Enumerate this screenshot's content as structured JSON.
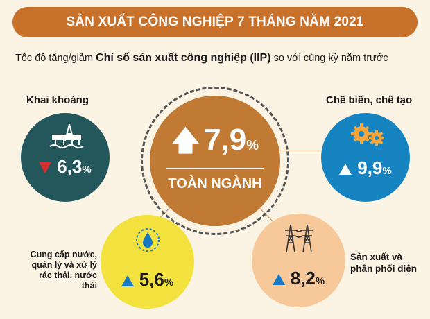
{
  "header": {
    "title": "SẢN XUẤT CÔNG NGHIỆP 7 THÁNG NĂM 2021"
  },
  "subtitle": {
    "part1": "Tốc độ tăng/giảm ",
    "part2": "Chỉ số sản xuất công nghiệp (IIP)",
    "part3": " so với cùng kỳ năm trước"
  },
  "total": {
    "value": "7,9",
    "unit": "%",
    "label": "TOÀN NGÀNH",
    "direction": "up"
  },
  "sectors": {
    "mining": {
      "label": "Khai khoáng",
      "value": "6,3",
      "unit": "%",
      "direction": "down",
      "color": "#23575c",
      "icon": "oil-rig-icon"
    },
    "manufacturing": {
      "label": "Chế biến, chế tạo",
      "value": "9,9",
      "unit": "%",
      "direction": "up",
      "color": "#1784c2",
      "icon": "gears-icon"
    },
    "water": {
      "label_lines": [
        "Cung cấp nước,",
        "quản lý và xử lý",
        "rác thải, nước thải"
      ],
      "value": "5,6",
      "unit": "%",
      "direction": "up",
      "color": "#f3e23e",
      "icon": "water-drop-icon"
    },
    "power": {
      "label_lines": [
        "Sản xuất và",
        "phân phối điện"
      ],
      "value": "8,2",
      "unit": "%",
      "direction": "up",
      "color": "#f7c89a",
      "icon": "power-tower-icon"
    }
  },
  "colors": {
    "accent": "#c8712b",
    "center": "#c17a34",
    "down": "#d32f2f",
    "up": "#1677c2",
    "background": "#fbf3e3"
  }
}
